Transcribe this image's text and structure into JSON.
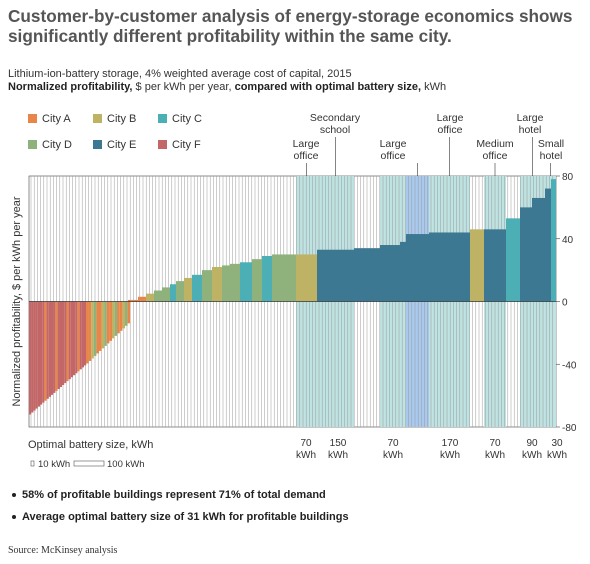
{
  "title": "Customer-by-customer analysis of energy-storage economics shows significantly different profitability within the same city.",
  "subtitle_line1": "Lithium-ion-battery storage, 4% weighted average cost of capital, 2015",
  "subtitle_bold_a": "Normalized profitability,",
  "subtitle_mid": " $ per kWh per year, ",
  "subtitle_bold_b": "compared with optimal battery size,",
  "subtitle_end": " kWh",
  "bullets": [
    "58% of profitable buildings represent 71% of total demand",
    "Average optimal battery size of 31 kWh for profitable buildings"
  ],
  "source": "Source: McKinsey analysis",
  "chart_data": {
    "type": "bar",
    "ylabel": "Normalized profitability, $ per kWh per year",
    "xlabel": "Optimal battery size, kWh",
    "ylim": [
      -80,
      80
    ],
    "yticks": [
      80,
      40,
      0,
      -40,
      -80
    ],
    "width_legend": [
      {
        "label": "10 kWh",
        "kwh": 10
      },
      {
        "label": "100 kWh",
        "kwh": 100
      }
    ],
    "legend": [
      {
        "name": "City A",
        "color": "#E8864A"
      },
      {
        "name": "City B",
        "color": "#BEB364"
      },
      {
        "name": "City C",
        "color": "#4BAFB5"
      },
      {
        "name": "City D",
        "color": "#8FB27C"
      },
      {
        "name": "City E",
        "color": "#3C7892"
      },
      {
        "name": "City F",
        "color": "#C26667"
      }
    ],
    "highlight_fill": "#BFE2E2",
    "highlight_special_fill": "#A9C9EF",
    "highlights": [
      {
        "label": "Large office",
        "size_label": "70 kWh",
        "value": 33
      },
      {
        "label": "Secondary school",
        "size_label": "150 kWh",
        "value": 33
      },
      {
        "label": "Large office",
        "size_label": "70 kWh",
        "value": 43,
        "special": true
      },
      {
        "label": "Large office",
        "size_label": "170 kWh",
        "value": 44
      },
      {
        "label": "Medium office",
        "size_label": "70 kWh",
        "value": 45
      },
      {
        "label": "Large hotel",
        "size_label": "90 kWh",
        "value": 67
      },
      {
        "label": "Small hotel",
        "size_label": "30 kWh",
        "value": 74
      }
    ]
  }
}
